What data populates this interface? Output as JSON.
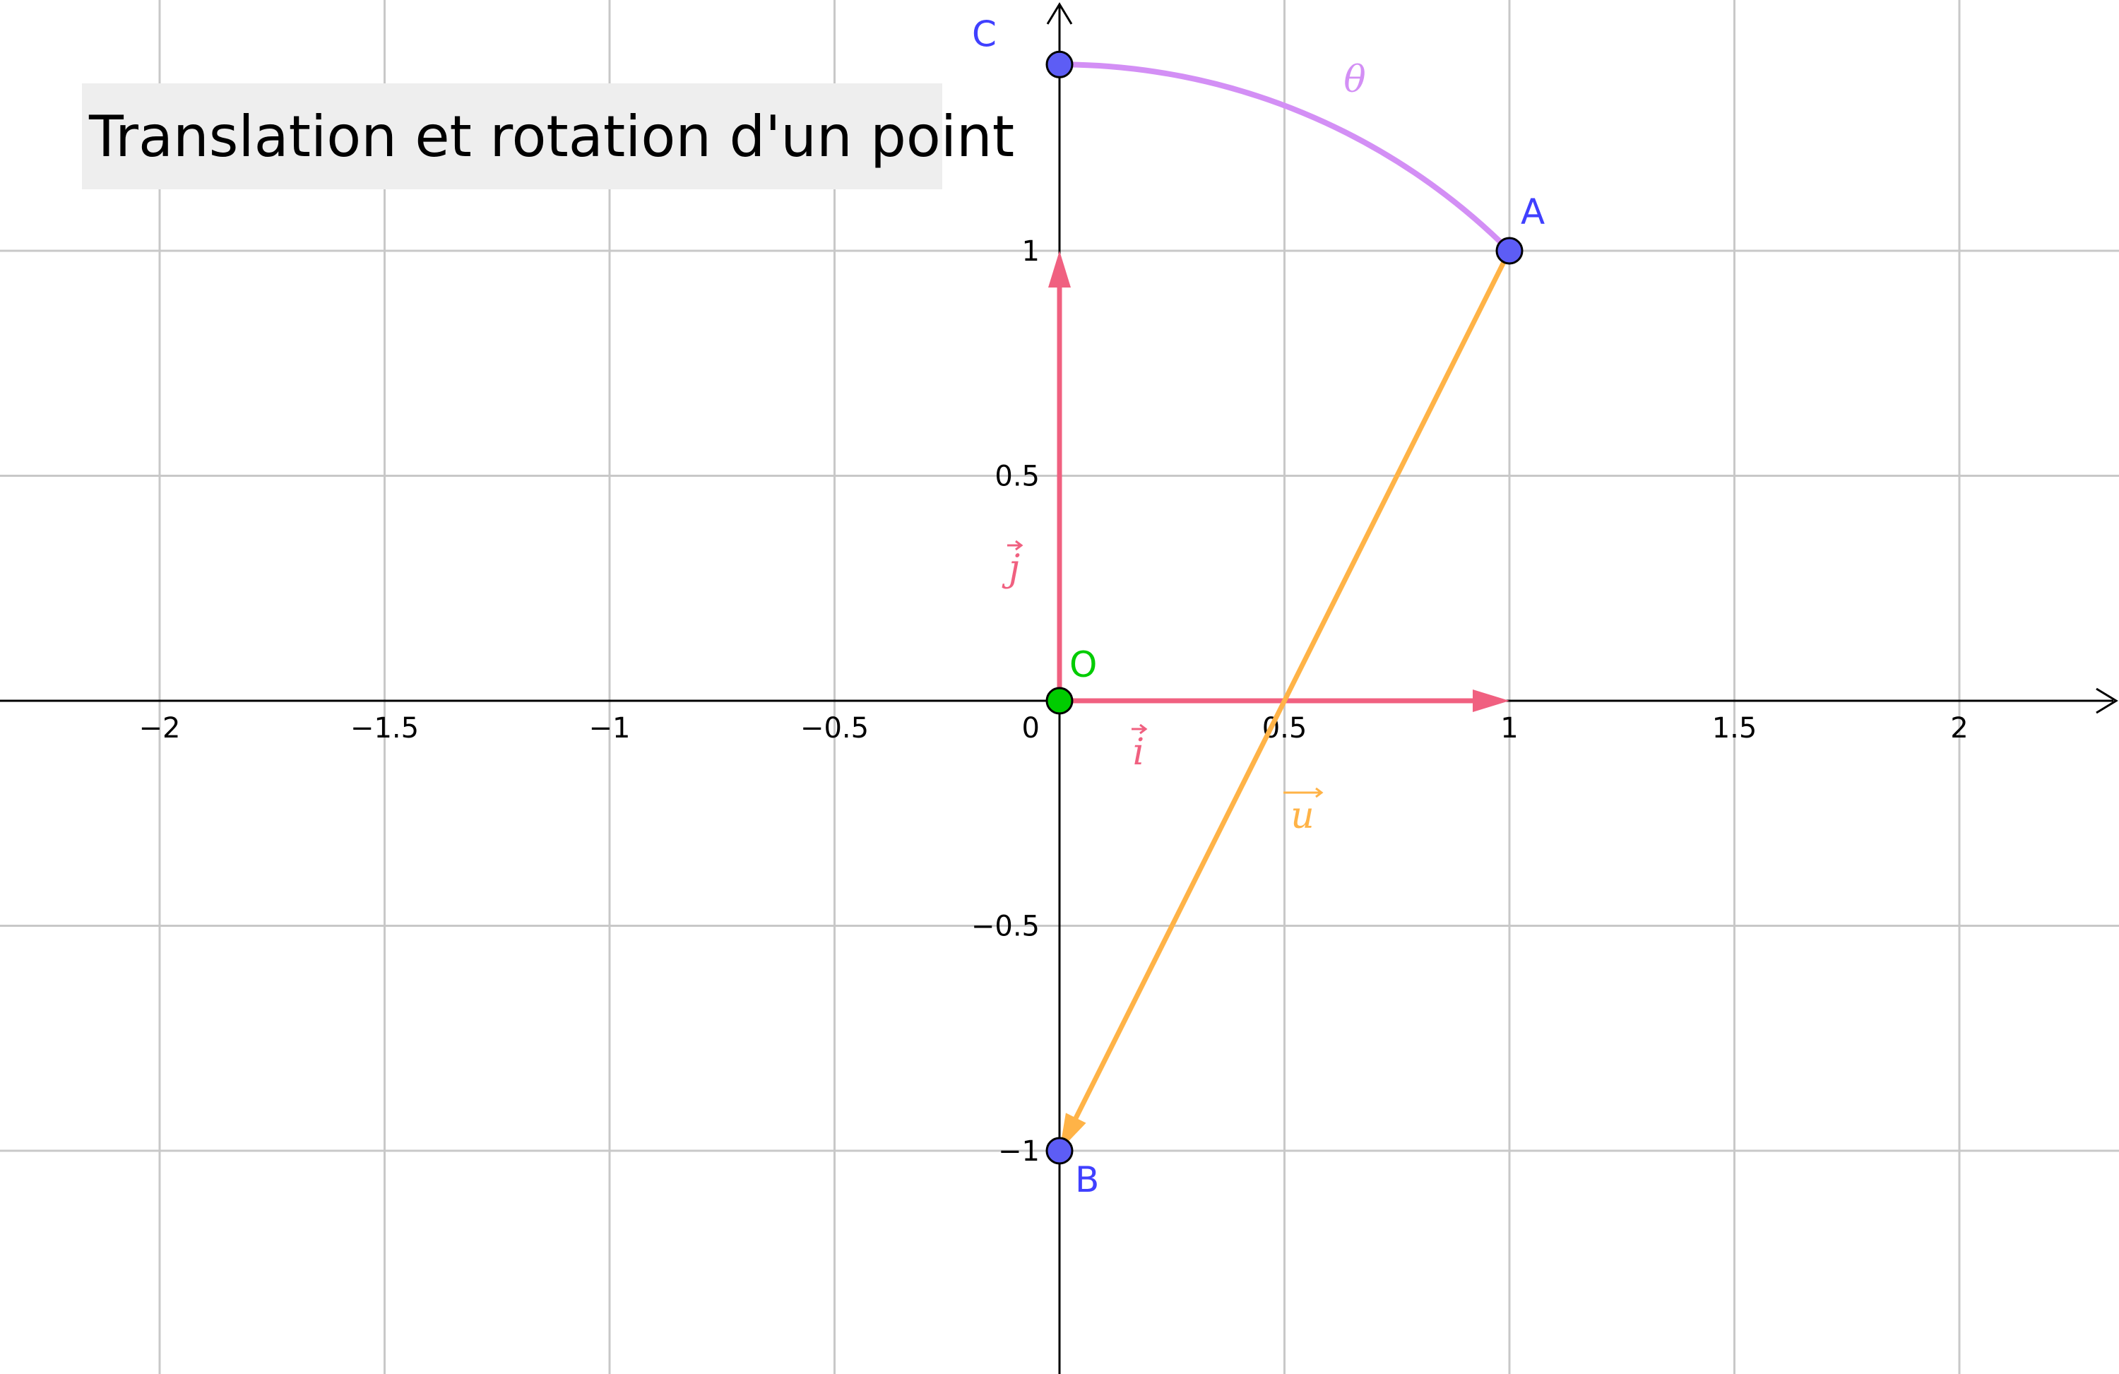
{
  "title": "Translation et rotation d'un point",
  "axes": {
    "x_ticks": [
      {
        "v": -2,
        "t": "−2"
      },
      {
        "v": -1.5,
        "t": "−1.5"
      },
      {
        "v": -1,
        "t": "−1"
      },
      {
        "v": -0.5,
        "t": "−0.5"
      },
      {
        "v": 0.5,
        "t": "0.5"
      },
      {
        "v": 1,
        "t": "1"
      },
      {
        "v": 1.5,
        "t": "1.5"
      },
      {
        "v": 2,
        "t": "2"
      }
    ],
    "y_ticks": [
      {
        "v": 1,
        "t": "1"
      },
      {
        "v": 0.5,
        "t": "0.5"
      },
      {
        "v": -0.5,
        "t": "−0.5"
      },
      {
        "v": -1,
        "t": "−1"
      }
    ],
    "origin_label": "0",
    "xlim": [
      -2.36,
      2.36
    ],
    "ylim": [
      -1.5,
      1.56
    ],
    "grid": true
  },
  "points": [
    {
      "name": "O",
      "label": "O",
      "x": 0,
      "y": 0,
      "fill": "#00cc00",
      "label_color": "#00cc00"
    },
    {
      "name": "A",
      "label": "A",
      "x": 1,
      "y": 1,
      "fill": "#5d5df5",
      "label_color": "#4040ff"
    },
    {
      "name": "B",
      "label": "B",
      "x": 0,
      "y": -1,
      "fill": "#5d5df5",
      "label_color": "#4040ff"
    },
    {
      "name": "C",
      "label": "C",
      "x": 0,
      "y": 1.414,
      "fill": "#5d5df5",
      "label_color": "#4040ff"
    }
  ],
  "vectors": [
    {
      "name": "i",
      "label": "i",
      "from": [
        0,
        0
      ],
      "to": [
        1,
        0
      ],
      "color": "#f06080"
    },
    {
      "name": "j",
      "label": "j",
      "from": [
        0,
        0
      ],
      "to": [
        0,
        1
      ],
      "color": "#f06080"
    },
    {
      "name": "u",
      "label": "u",
      "from": [
        1,
        1
      ],
      "to": [
        0,
        -1
      ],
      "color": "#ffb347"
    }
  ],
  "arc": {
    "label": "θ",
    "color": "#d38ff5",
    "from": "C",
    "to": "A"
  },
  "colors": {
    "axis": "#000000",
    "grid": "#c8c8c8"
  }
}
